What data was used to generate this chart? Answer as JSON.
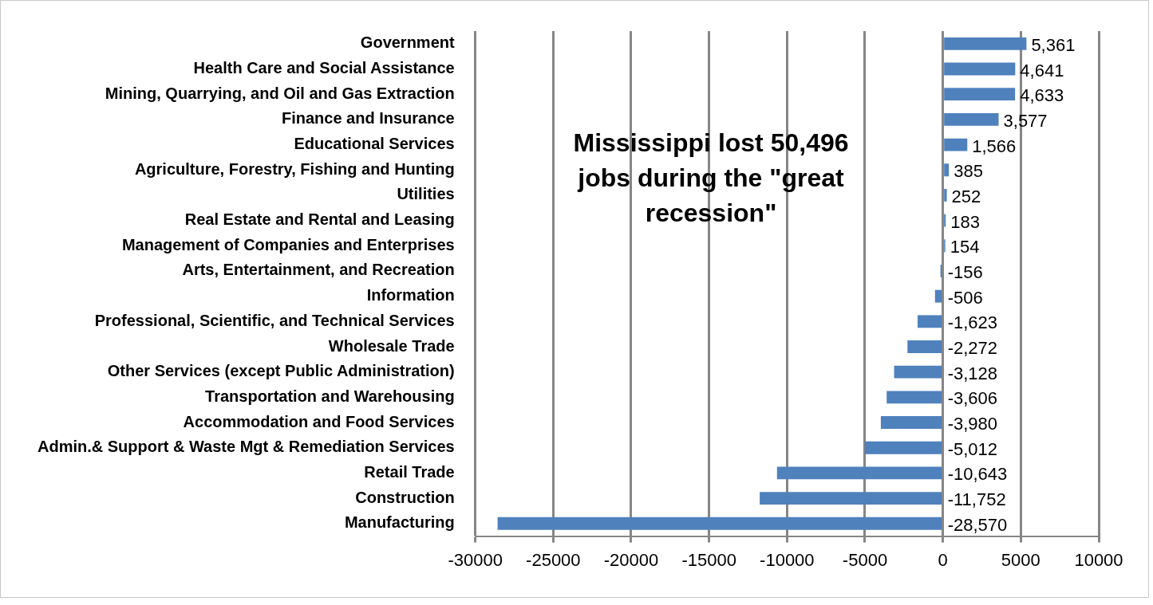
{
  "chart_data": {
    "type": "bar",
    "orientation": "horizontal",
    "categories": [
      "Government",
      "Health Care and Social Assistance",
      "Mining, Quarrying, and Oil and Gas Extraction",
      "Finance and Insurance",
      "Educational Services",
      "Agriculture, Forestry, Fishing and Hunting",
      "Utilities",
      "Real Estate and Rental and Leasing",
      "Management of Companies and Enterprises",
      "Arts, Entertainment, and Recreation",
      "Information",
      "Professional, Scientific, and Technical Services",
      "Wholesale Trade",
      "Other Services (except Public Administration)",
      "Transportation and Warehousing",
      "Accommodation and Food Services",
      "Admin.& Support & Waste Mgt & Remediation Services",
      "Retail Trade",
      "Construction",
      "Manufacturing"
    ],
    "values": [
      5361,
      4641,
      4633,
      3577,
      1566,
      385,
      252,
      183,
      154,
      -156,
      -506,
      -1623,
      -2272,
      -3128,
      -3606,
      -3980,
      -5012,
      -10643,
      -11752,
      -28570
    ],
    "value_labels": [
      "5,361",
      "4,641",
      "4,633",
      "3,577",
      "1,566",
      "385",
      "252",
      "183",
      "154",
      "-156",
      "-506",
      "-1,623",
      "-2,272",
      "-3,128",
      "-3,606",
      "-3,980",
      "-5,012",
      "-10,643",
      "-11,752",
      "-28,570"
    ],
    "color": "#4f81bd",
    "xlim": [
      -30000,
      10000
    ],
    "xticks": [
      -30000,
      -25000,
      -20000,
      -15000,
      -10000,
      -5000,
      0,
      5000,
      10000
    ],
    "grid": "x",
    "legend": false,
    "annotations": [
      "Mississippi lost 50,496 jobs during the \"great recession\""
    ]
  }
}
